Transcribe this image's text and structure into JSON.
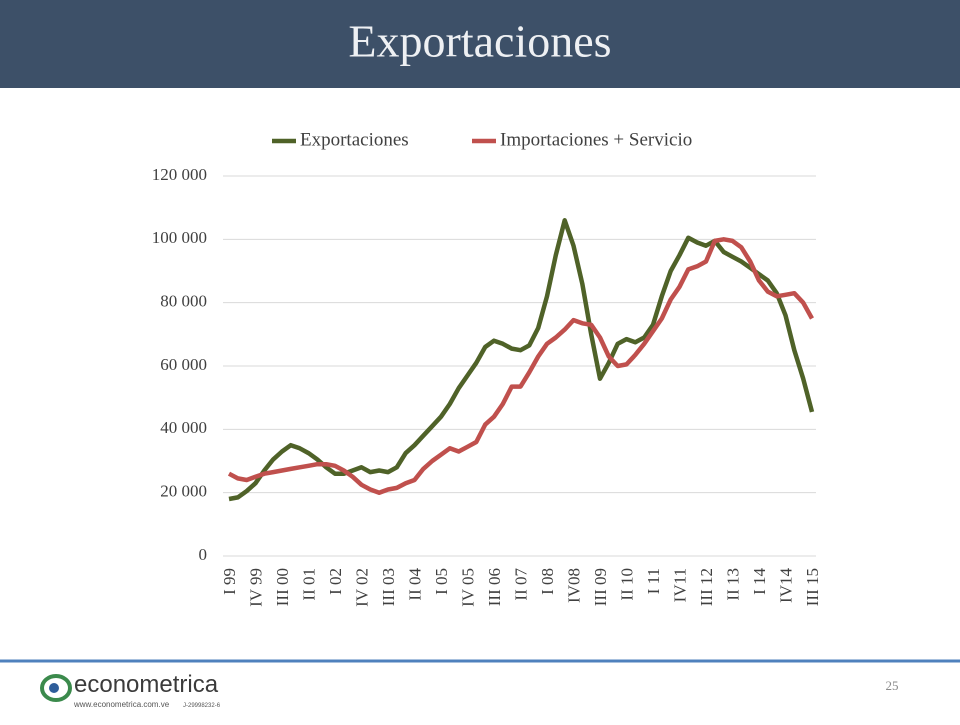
{
  "header": {
    "title": "Exportaciones"
  },
  "footer": {
    "logo_text": "econometrica",
    "url": "www.econometrica.com.ve",
    "rif": "J-29998232-6",
    "page_number": "25"
  },
  "chart_data": {
    "type": "line",
    "categories": [
      "I 99",
      null,
      null,
      "IV 99",
      null,
      null,
      "III 00",
      null,
      null,
      "II 01",
      null,
      null,
      "I 02",
      null,
      null,
      "IV 02",
      null,
      null,
      "III 03",
      null,
      null,
      "II 04",
      null,
      null,
      "I 05",
      null,
      null,
      "IV 05",
      null,
      null,
      "III 06",
      null,
      null,
      "II 07",
      null,
      null,
      "I 08",
      null,
      null,
      "IV08",
      null,
      null,
      "III 09",
      null,
      null,
      "II 10",
      null,
      null,
      "I 11",
      null,
      null,
      "IV11",
      null,
      null,
      "III 12",
      null,
      null,
      "II 13",
      null,
      null,
      "I 14",
      null,
      null,
      "IV14",
      null,
      null,
      "III 15"
    ],
    "series": [
      {
        "name": "Exportaciones",
        "color": "#4f6228",
        "values": [
          18000,
          18500,
          20500,
          23000,
          27000,
          30500,
          33000,
          35000,
          34000,
          32500,
          30500,
          28000,
          26000,
          26000,
          27000,
          28000,
          26500,
          27000,
          26500,
          28000,
          32500,
          35000,
          38000,
          41000,
          44000,
          48000,
          53000,
          57000,
          61000,
          66000,
          68000,
          67000,
          65500,
          65000,
          66500,
          72000,
          82000,
          95000,
          106000,
          98000,
          86000,
          70000,
          56000,
          61000,
          67000,
          68500,
          67500,
          69000,
          73000,
          82000,
          90000,
          95000,
          100500,
          99000,
          98000,
          99500,
          96000,
          94500,
          93000,
          91000,
          89000,
          87000,
          83000,
          76000,
          65000,
          56000,
          45500
        ]
      },
      {
        "name": "Importaciones + Servicio",
        "color": "#c0504d",
        "values": [
          26000,
          24500,
          24000,
          25000,
          26000,
          26500,
          27000,
          27500,
          28000,
          28500,
          29000,
          29000,
          28500,
          27000,
          25000,
          22500,
          21000,
          20000,
          21000,
          21500,
          23000,
          24000,
          27500,
          30000,
          32000,
          34000,
          33000,
          34500,
          36000,
          41500,
          44000,
          48000,
          53500,
          53500,
          58000,
          63000,
          67000,
          69000,
          71500,
          74500,
          73500,
          73000,
          69000,
          63000,
          60000,
          60500,
          63500,
          67000,
          71000,
          75000,
          81000,
          85000,
          90500,
          91500,
          93000,
          99500,
          100000,
          99500,
          97500,
          93000,
          87000,
          83500,
          82000,
          82500,
          83000,
          80000,
          75000
        ]
      }
    ],
    "ylim": [
      0,
      120000
    ],
    "yticks": [
      0,
      {
        "value": 20000,
        "label": "20 000"
      },
      {
        "value": 40000,
        "label": "40 000"
      },
      {
        "value": 60000,
        "label": "60 000"
      },
      {
        "value": 80000,
        "label": "80 000"
      },
      {
        "value": 100000,
        "label": "100 000"
      },
      {
        "value": 120000,
        "label": "120 000"
      }
    ],
    "grid": true,
    "legend": "top"
  }
}
